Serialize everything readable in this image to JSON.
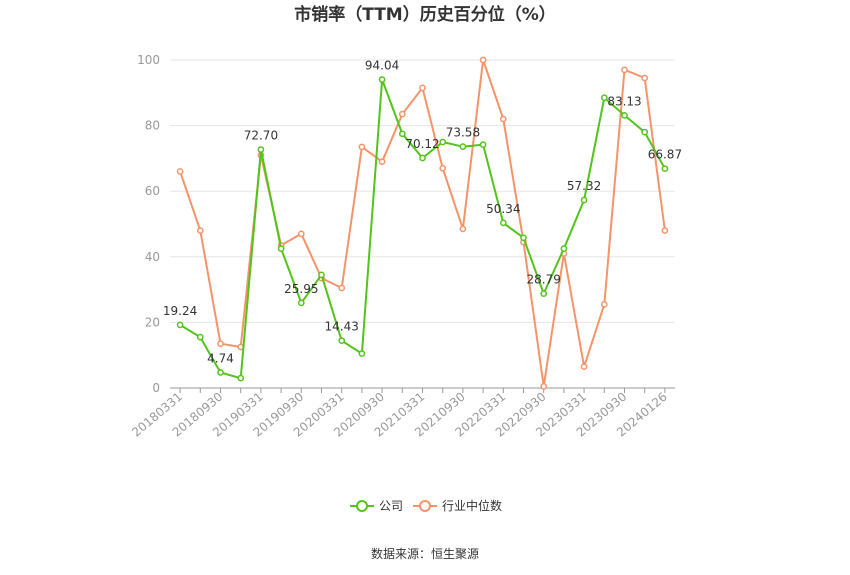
{
  "chart_data": {
    "type": "line",
    "title": "市销率（TTM）历史百分位（%）",
    "xlabel": "",
    "ylabel": "",
    "ylim": [
      0,
      100
    ],
    "yticks": [
      0,
      20,
      40,
      60,
      80,
      100
    ],
    "grid": true,
    "legend_position": "bottom",
    "x": [
      "20180331",
      "20180630",
      "20180930",
      "20181231",
      "20190331",
      "20190630",
      "20190930",
      "20191231",
      "20200331",
      "20200630",
      "20200930",
      "20201231",
      "20210331",
      "20210630",
      "20210930",
      "20211231",
      "20220331",
      "20220630",
      "20220930",
      "20221231",
      "20230331",
      "20230630",
      "20230930",
      "20231231",
      "20240126"
    ],
    "x_tick_labels": [
      "20180331",
      "20180930",
      "20190331",
      "20190930",
      "20200331",
      "20200930",
      "20210331",
      "20210930",
      "20220331",
      "20220930",
      "20230331",
      "20230930",
      "20240126"
    ],
    "series": [
      {
        "name": "公司",
        "color": "#52c41a",
        "values": [
          19.24,
          15.5,
          4.74,
          3.0,
          72.7,
          42.5,
          25.95,
          34.5,
          14.43,
          10.5,
          94.04,
          77.5,
          70.12,
          75.0,
          73.58,
          74.2,
          50.34,
          45.8,
          28.79,
          42.5,
          57.32,
          88.5,
          83.13,
          78.0,
          66.87
        ],
        "labels": {
          "0": "19.24",
          "2": "4.74",
          "4": "72.70",
          "6": "25.95",
          "8": "14.43",
          "10": "94.04",
          "12": "70.12",
          "14": "73.58",
          "16": "50.34",
          "18": "28.79",
          "20": "57.32",
          "22": "83.13",
          "24": "66.87"
        }
      },
      {
        "name": "行业中位数",
        "color": "#f4946a",
        "values": [
          66.0,
          48.0,
          13.5,
          12.5,
          71.0,
          43.5,
          47.0,
          33.5,
          30.5,
          73.5,
          69.0,
          83.5,
          91.5,
          67.0,
          48.5,
          100.0,
          82.0,
          44.5,
          0.5,
          41.0,
          6.5,
          25.5,
          97.0,
          94.5,
          48.0
        ],
        "labels": {}
      }
    ],
    "source": "数据来源：恒生聚源"
  }
}
